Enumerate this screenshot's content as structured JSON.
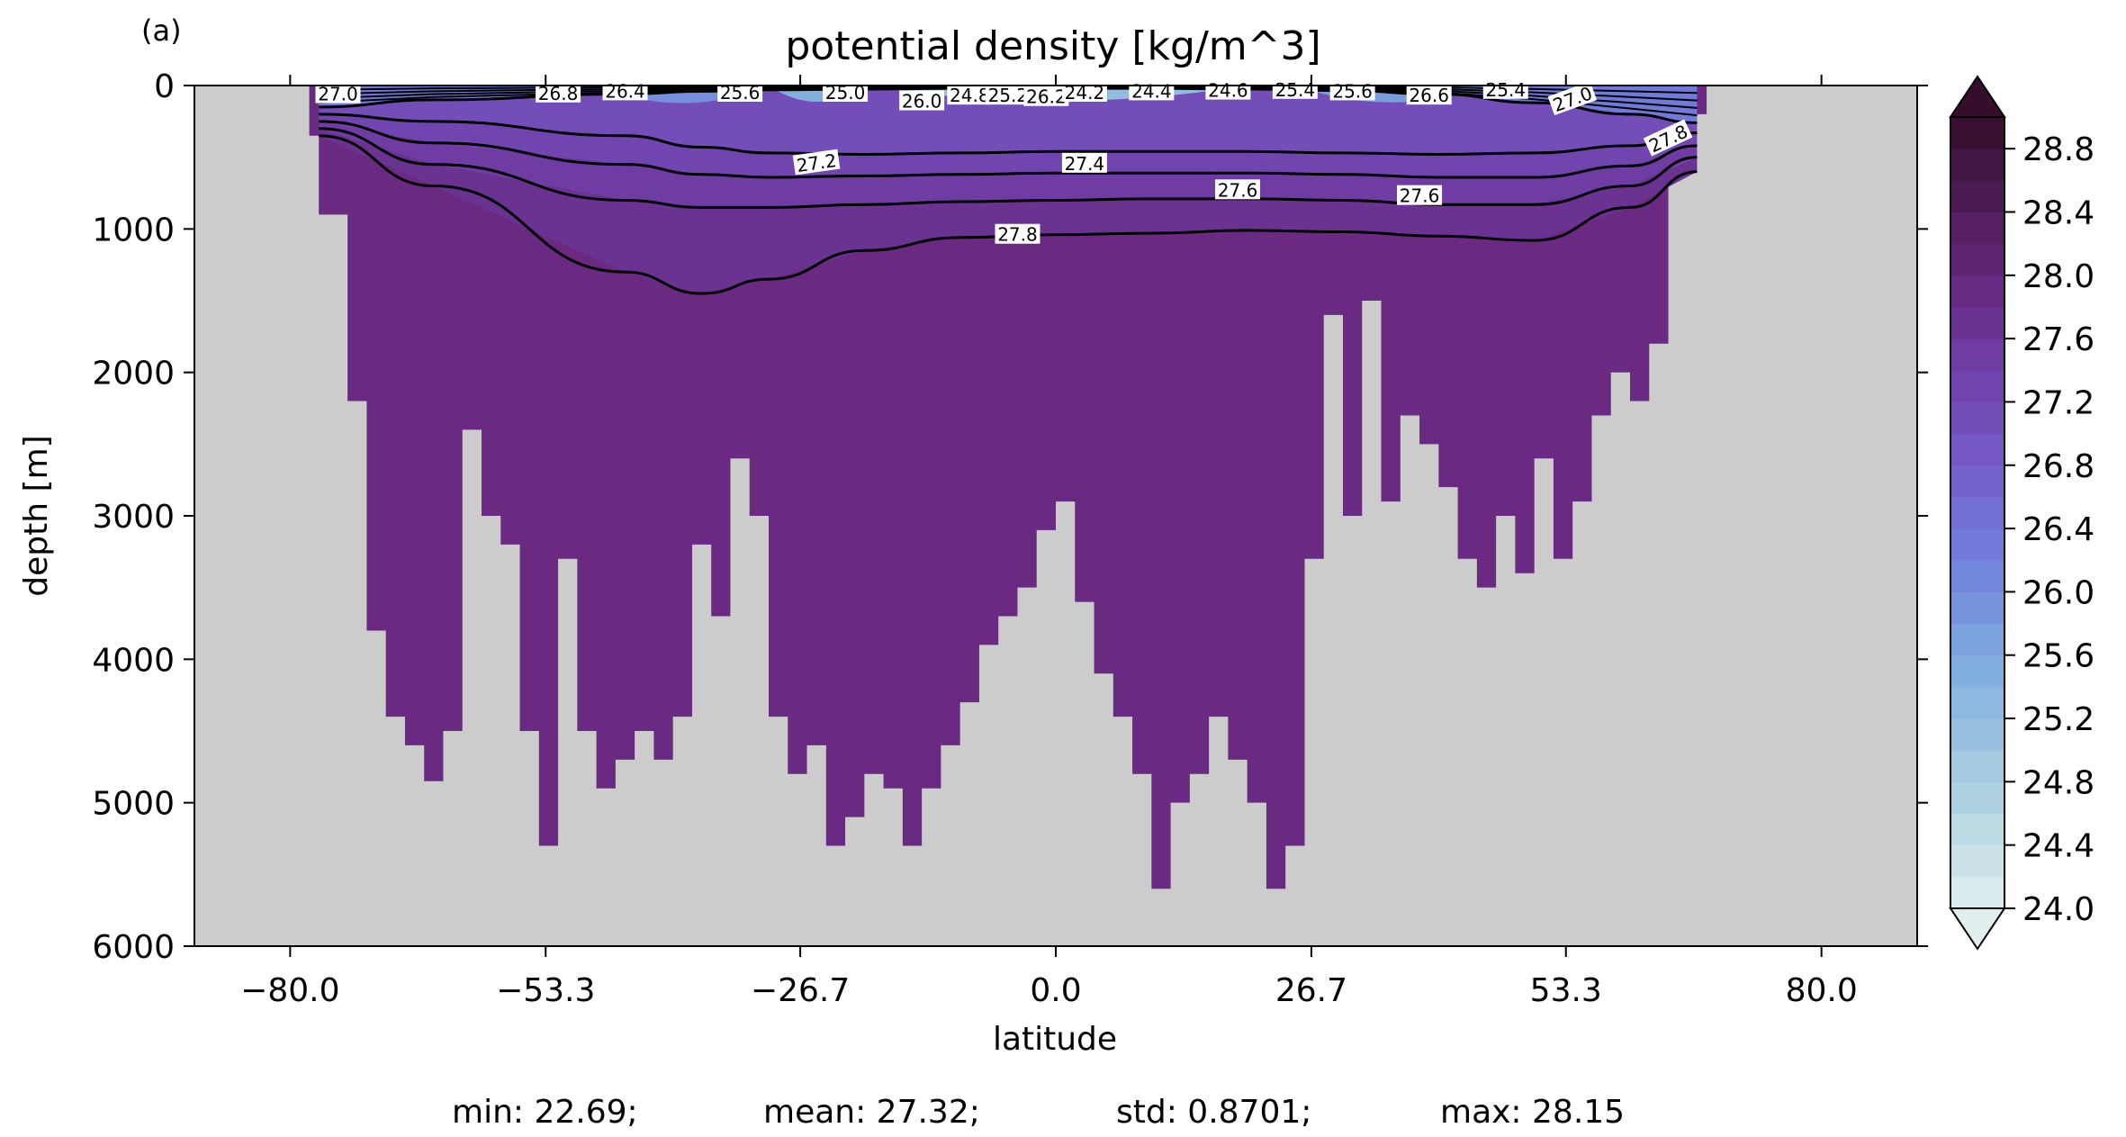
{
  "chart_data": {
    "type": "contourf",
    "panel_label": "(a)",
    "title": "potential density [kg/m^3]",
    "xlabel": "latitude",
    "ylabel": "depth [m]",
    "xlim": [
      -90,
      90
    ],
    "ylim": [
      6000,
      0
    ],
    "x_ticks": [
      -80.0,
      -53.3,
      -26.7,
      0.0,
      26.7,
      53.3,
      80.0
    ],
    "x_tick_labels": [
      "−80.0",
      "−53.3",
      "−26.7",
      "0.0",
      "26.7",
      "53.3",
      "80.0"
    ],
    "y_ticks": [
      0,
      1000,
      2000,
      3000,
      4000,
      5000,
      6000
    ],
    "y_tick_labels": [
      "0",
      "1000",
      "2000",
      "3000",
      "4000",
      "5000",
      "6000"
    ],
    "colorbar": {
      "ticks": [
        24.0,
        24.4,
        24.8,
        25.2,
        25.6,
        26.0,
        26.4,
        26.8,
        27.2,
        27.6,
        28.0,
        28.4,
        28.8
      ],
      "tick_labels": [
        "24.0",
        "24.4",
        "24.8",
        "25.2",
        "25.6",
        "26.0",
        "26.4",
        "26.8",
        "27.2",
        "27.6",
        "28.0",
        "28.4",
        "28.8"
      ],
      "range": [
        24.0,
        29.0
      ],
      "extend": "both"
    },
    "land_color": "#cccccc",
    "deep_water_color": "#6a2a82",
    "bottom_profile": {
      "latitude": [
        -78,
        -77,
        -74,
        -72,
        -70,
        -68,
        -66,
        -64,
        -62,
        -60,
        -58,
        -56,
        -54,
        -52,
        -50,
        -48,
        -46,
        -44,
        -42,
        -40,
        -38,
        -36,
        -34,
        -32,
        -30,
        -28,
        -26,
        -24,
        -22,
        -20,
        -18,
        -16,
        -14,
        -12,
        -10,
        -8,
        -6,
        -4,
        -2,
        0,
        2,
        4,
        6,
        8,
        10,
        12,
        14,
        16,
        18,
        20,
        22,
        24,
        26,
        28,
        30,
        32,
        34,
        36,
        38,
        40,
        42,
        44,
        46,
        48,
        50,
        52,
        54,
        56,
        58,
        60,
        62,
        64,
        66,
        68
      ],
      "depth": [
        350,
        900,
        2200,
        3800,
        4400,
        4600,
        4850,
        4500,
        2400,
        3000,
        3200,
        4500,
        5300,
        3300,
        4500,
        4900,
        4700,
        4500,
        4700,
        4400,
        3200,
        3700,
        2600,
        3000,
        4400,
        4800,
        4600,
        5300,
        5100,
        4800,
        4900,
        5300,
        4900,
        4600,
        4300,
        3900,
        3700,
        3500,
        3100,
        2900,
        3600,
        4100,
        4400,
        4800,
        5600,
        5000,
        4800,
        4400,
        4700,
        5000,
        5600,
        5300,
        3300,
        1600,
        3000,
        1500,
        2900,
        2300,
        2500,
        2800,
        3300,
        3500,
        3000,
        3400,
        2600,
        3300,
        2900,
        2300,
        2000,
        2200,
        1800,
        500,
        200,
        200
      ]
    },
    "isopycnals": [
      {
        "level": 27.0,
        "depth": [
          150,
          100,
          60,
          40,
          30,
          25,
          20,
          20,
          20,
          25,
          35,
          60,
          120,
          200,
          260
        ]
      },
      {
        "level": 27.2,
        "depth": [
          200,
          250,
          350,
          430,
          470,
          480,
          470,
          460,
          460,
          460,
          470,
          480,
          470,
          420,
          330
        ]
      },
      {
        "level": 27.4,
        "depth": [
          250,
          400,
          550,
          620,
          640,
          630,
          620,
          610,
          610,
          610,
          620,
          640,
          640,
          560,
          420
        ]
      },
      {
        "level": 27.6,
        "depth": [
          300,
          550,
          800,
          850,
          850,
          830,
          810,
          800,
          790,
          790,
          800,
          830,
          830,
          700,
          500
        ]
      },
      {
        "level": 27.8,
        "depth": [
          350,
          700,
          1300,
          1450,
          1350,
          1150,
          1060,
          1040,
          1030,
          1010,
          1020,
          1050,
          1080,
          850,
          600
        ]
      }
    ],
    "isopycnal_latitudes": [
      -77,
      -65,
      -45,
      -37,
      -30,
      -20,
      -10,
      0,
      10,
      20,
      30,
      40,
      50,
      60,
      67
    ],
    "contour_labels": [
      "27.0",
      "26.8",
      "26.4",
      "25.6",
      "25.0",
      "26.0",
      "24.8",
      "25.2",
      "26.2",
      "24.2",
      "24.4",
      "24.6",
      "25.4",
      "25.6",
      "26.6",
      "25.4",
      "27.0",
      "27.2",
      "27.4",
      "27.6",
      "27.6",
      "27.8",
      "27.8"
    ],
    "stats": {
      "min": "min: 22.69;",
      "mean": "mean: 27.32;",
      "std": "std: 0.8701;",
      "max": "max: 28.15"
    }
  }
}
